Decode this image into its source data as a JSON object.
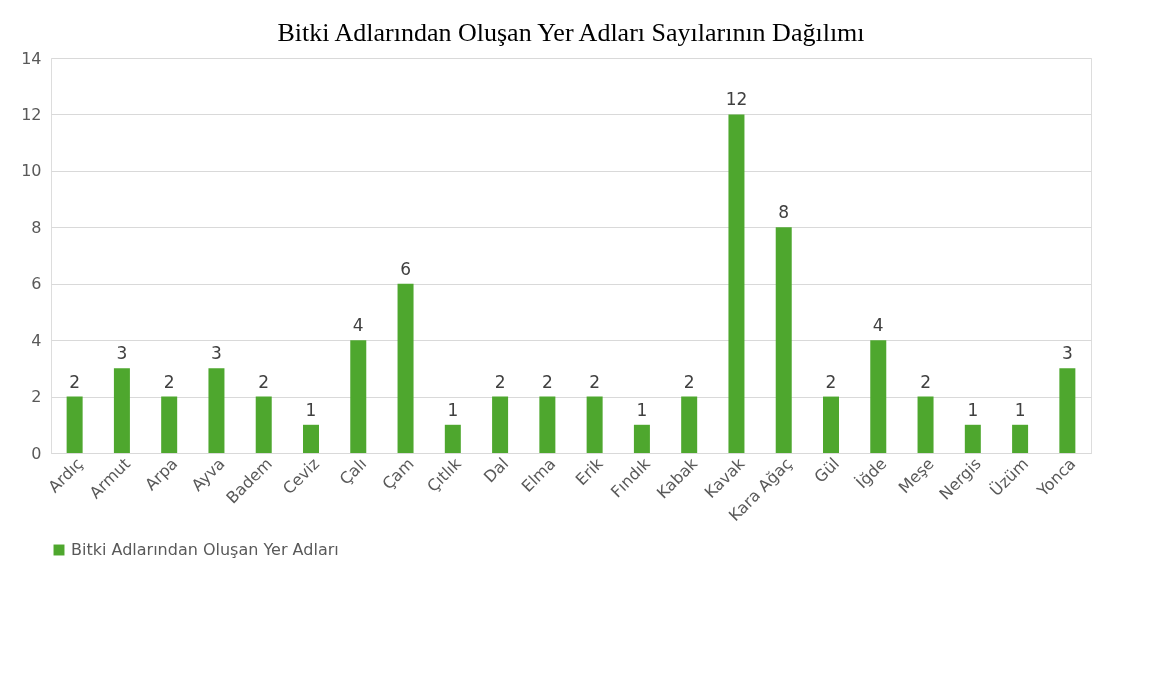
{
  "chart_data": {
    "type": "bar",
    "title": "Bitki Adlarından Oluşan Yer Adları Sayılarının Dağılımı",
    "categories": [
      "Ardıç",
      "Armut",
      "Arpa",
      "Ayva",
      "Badem",
      "Ceviz",
      "Çalı",
      "Çam",
      "Çıtlık",
      "Dal",
      "Elma",
      "Erik",
      "Fındık",
      "Kabak",
      "Kavak",
      "Kara Ağaç",
      "Gül",
      "İğde",
      "Meşe",
      "Nergis",
      "Üzüm",
      "Yonca"
    ],
    "series": [
      {
        "name": "Bitki Adlarından Oluşan Yer Adları",
        "color": "#4ea72e",
        "values": [
          2,
          3,
          2,
          3,
          2,
          1,
          4,
          6,
          1,
          2,
          2,
          2,
          1,
          2,
          12,
          8,
          2,
          4,
          2,
          1,
          1,
          3
        ]
      }
    ],
    "ylim": [
      0,
      14
    ],
    "yticks": [
      0,
      2,
      4,
      6,
      8,
      10,
      12,
      14
    ],
    "grid": "y",
    "legend": "bottom",
    "data_labels": true
  }
}
